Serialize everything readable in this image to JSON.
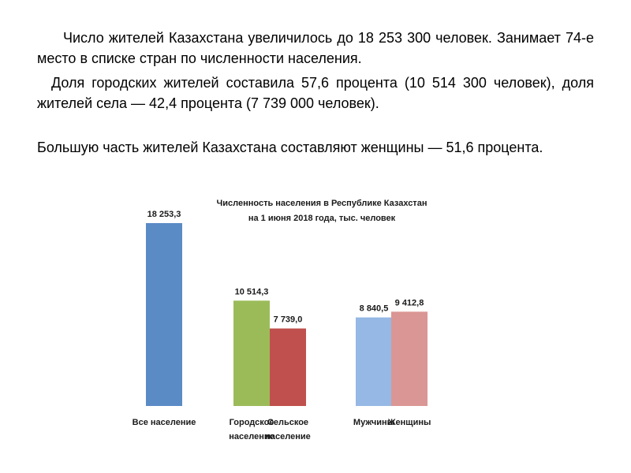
{
  "text": {
    "p1": "Число жителей Казахстана увеличилось до 18 253 300 человек. Занимает 74-е место в списке стран по численности населения.",
    "p2": "Доля городских жителей составила 57,6 процента (10 514 300 человек), доля жителей села — 42,4 процента (7 739 000 человек).",
    "p3": "Большую часть жителей Казахстана составляют женщины — 51,6 процента."
  },
  "chart_data": {
    "type": "bar",
    "title": [
      "Численность населения в Республике Казахстан",
      "на 1 июня 2018 года, тыс. человек"
    ],
    "xlabel": "",
    "ylabel": "",
    "ylim": [
      0,
      18253.3
    ],
    "grid": false,
    "legend": "none",
    "bars": [
      {
        "category": [
          "Все население"
        ],
        "value": 18253.3,
        "label": "18 253,3",
        "color": "#5B8BC5"
      },
      {
        "category": [
          "Городское",
          "население"
        ],
        "value": 10514.3,
        "label": "10 514,3",
        "color": "#9BBB59"
      },
      {
        "category": [
          "Сельское",
          "население"
        ],
        "value": 7739.0,
        "label": "7 739,0",
        "color": "#C0504D"
      },
      {
        "category": [
          "Мужчины"
        ],
        "value": 8840.5,
        "label": "8 840,5",
        "color": "#95B8E5"
      },
      {
        "category": [
          "Женщины"
        ],
        "value": 9412.8,
        "label": "9 412,8",
        "color": "#DA9694"
      }
    ]
  }
}
